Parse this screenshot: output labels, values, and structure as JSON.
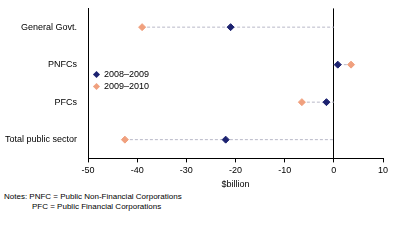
{
  "chart_data": {
    "type": "scatter",
    "orientation": "horizontal",
    "marker": "diamond",
    "categories": [
      "General Govt.",
      "PNFCs",
      "PFCs",
      "Total public sector"
    ],
    "series": [
      {
        "name": "2008–2009",
        "color": "#1c2270",
        "values": [
          -21,
          0.8,
          -1.5,
          -22
        ]
      },
      {
        "name": "2009–2010",
        "color": "#f0a07e",
        "values": [
          -39,
          3.5,
          -6.5,
          -42.5
        ]
      }
    ],
    "xlabel": "$billion",
    "xlim": [
      -50,
      10
    ],
    "xticks": [
      -50,
      -40,
      -30,
      -20,
      -10,
      0,
      10
    ],
    "grid": false,
    "legend": "left",
    "annotations": [
      "Notes: PNFC = Public Non-Financial Corporations",
      "PFC = Public Financial Corporations"
    ]
  }
}
